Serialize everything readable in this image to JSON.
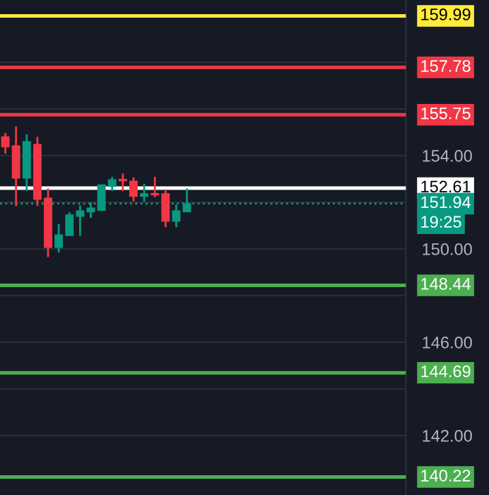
{
  "chart_data": {
    "type": "candlestick",
    "categories": [
      null,
      null,
      null,
      null,
      null,
      null,
      null,
      null,
      null,
      null,
      null,
      null,
      null,
      null,
      null,
      null,
      null,
      null,
      null,
      null,
      null,
      null,
      null,
      null,
      null,
      null,
      null,
      null,
      null,
      null,
      null,
      null,
      null,
      null,
      null,
      null,
      null,
      null
    ],
    "ohlc": [
      [
        154.79,
        154.97,
        154.08,
        154.39
      ],
      [
        154.41,
        155.25,
        151.84,
        153.05
      ],
      [
        153.05,
        154.91,
        152.48,
        154.59
      ],
      [
        154.47,
        154.8,
        151.84,
        152.14
      ],
      [
        152.16,
        152.59,
        149.65,
        150.08
      ],
      [
        150.08,
        151.07,
        149.84,
        150.59
      ],
      [
        150.59,
        151.57,
        150.58,
        151.44
      ],
      [
        151.41,
        151.86,
        150.56,
        151.62
      ],
      [
        151.6,
        151.99,
        151.33,
        151.74
      ],
      [
        151.66,
        152.73,
        151.66,
        152.73
      ],
      [
        152.69,
        153.09,
        152.48,
        152.95
      ],
      [
        152.97,
        153.23,
        152.48,
        152.93
      ],
      [
        152.89,
        153.07,
        152.04,
        152.27
      ],
      [
        152.27,
        152.79,
        152.02,
        152.35
      ],
      [
        152.36,
        153.09,
        152.22,
        152.33
      ],
      [
        152.35,
        152.55,
        150.93,
        151.2
      ],
      [
        151.2,
        151.9,
        150.93,
        151.62
      ],
      [
        151.6,
        152.59,
        151.6,
        151.92
      ],
      null,
      null,
      null,
      null,
      null,
      null,
      null,
      null,
      null,
      null,
      null,
      null,
      null,
      null,
      null,
      null,
      null,
      null,
      null,
      null
    ],
    "colors": [
      "#f23645",
      "#f23645",
      "#089981",
      "#f23645",
      "#f23645",
      "#089981",
      "#089981",
      "#089981",
      "#089981",
      "#089981",
      "#089981",
      "#f23645",
      "#f23645",
      "#089981",
      "#f23645",
      "#f23645",
      "#089981",
      "#089981",
      null,
      null,
      null,
      null,
      null,
      null,
      null,
      null,
      null,
      null,
      null,
      null,
      null,
      null,
      null,
      null,
      null,
      null,
      null,
      null
    ],
    "ylim": [
      139.45,
      160.67
    ],
    "yticks": [
      {
        "value": 142,
        "label": "142.00"
      },
      {
        "value": 144,
        "label": null
      },
      {
        "value": 146,
        "label": "146.00"
      },
      {
        "value": 148,
        "label": null
      },
      {
        "value": 150,
        "label": "150.00"
      },
      {
        "value": 152,
        "label": null
      },
      {
        "value": 154,
        "label": "154.00"
      },
      {
        "value": 156,
        "label": null
      },
      {
        "value": 158,
        "label": null
      }
    ],
    "tick_labels": "y",
    "grid": "y",
    "ref_lines": [
      {
        "axis": "y",
        "value": 159.99,
        "label": "159.99",
        "color": "#ffeb3b",
        "line_style": "solid"
      },
      {
        "axis": "y",
        "value": 157.78,
        "label": "157.78",
        "color": "#f23645",
        "line_style": "solid"
      },
      {
        "axis": "y",
        "value": 155.75,
        "label": "155.75",
        "color": "#f23645",
        "line_style": "solid"
      },
      {
        "axis": "y",
        "value": 152.61,
        "label": "152.61",
        "color": "#ffffff",
        "line_style": "solid"
      },
      {
        "axis": "y",
        "value": 151.94,
        "label": "151.94",
        "color": "#089981",
        "line_style": "dotted"
      },
      {
        "axis": "y",
        "value": 148.44,
        "label": "148.44",
        "color": "#4caf50",
        "line_style": "solid"
      },
      {
        "axis": "y",
        "value": 144.69,
        "label": "144.69",
        "color": "#4caf50",
        "line_style": "solid"
      },
      {
        "axis": "y",
        "value": 140.22,
        "label": "140.22",
        "color": "#4caf50",
        "line_style": "solid"
      }
    ],
    "annotations": [
      "19:25"
    ]
  }
}
